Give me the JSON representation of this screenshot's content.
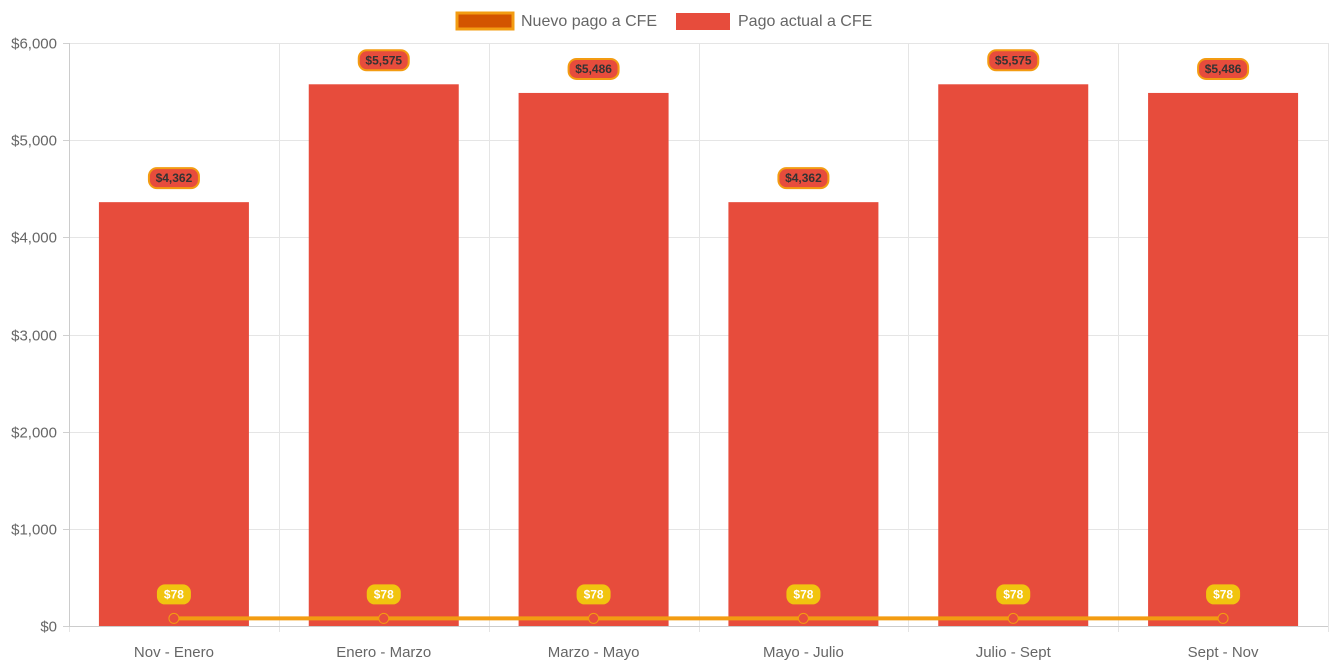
{
  "chart_data": {
    "type": "bar",
    "categories": [
      "Nov - Enero",
      "Enero - Marzo",
      "Marzo - Mayo",
      "Mayo - Julio",
      "Julio - Sept",
      "Sept - Nov"
    ],
    "series": [
      {
        "name": "Nuevo pago a CFE",
        "type": "line",
        "values": [
          78,
          78,
          78,
          78,
          78,
          78
        ],
        "labels": [
          "$78",
          "$78",
          "$78",
          "$78",
          "$78",
          "$78"
        ],
        "color": "#f39c12",
        "swatch_color": "#d35400",
        "label_bg": "#f1c40f",
        "point_color": "#e74c3c"
      },
      {
        "name": "Pago actual a CFE",
        "type": "bar",
        "values": [
          4362,
          5575,
          5486,
          4362,
          5575,
          5486
        ],
        "labels": [
          "$4,362",
          "$5,575",
          "$5,486",
          "$4,362",
          "$5,575",
          "$5,486"
        ],
        "color": "#e74c3c",
        "label_border": "#f39c12"
      }
    ],
    "ylim": [
      0,
      6000
    ],
    "yticks": [
      {
        "value": 0,
        "label": "$0"
      },
      {
        "value": 1000,
        "label": "$1,000"
      },
      {
        "value": 2000,
        "label": "$2,000"
      },
      {
        "value": 3000,
        "label": "$3,000"
      },
      {
        "value": 4000,
        "label": "$4,000"
      },
      {
        "value": 5000,
        "label": "$5,000"
      },
      {
        "value": 6000,
        "label": "$6,000"
      }
    ],
    "grid": true,
    "legend": "top-center",
    "title": "",
    "xlabel": "",
    "ylabel": ""
  }
}
